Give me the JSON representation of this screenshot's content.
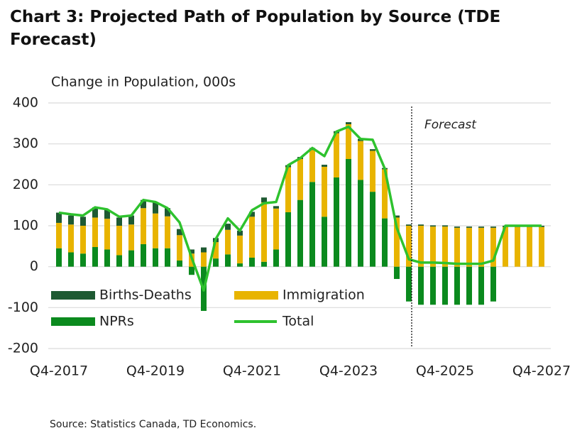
{
  "chart_data": {
    "type": "bar",
    "title": "Chart 3: Projected Path of Population by Source (TDE Forecast)",
    "y_label": "Change in Population, 000s",
    "source": "Source: Statistics Canada, TD Economics.",
    "annotation": "Forecast",
    "categories": [
      "Q4-2017",
      null,
      null,
      null,
      null,
      null,
      null,
      null,
      "Q4-2019",
      null,
      null,
      null,
      null,
      null,
      null,
      null,
      "Q4-2021",
      null,
      null,
      null,
      null,
      null,
      null,
      null,
      "Q4-2023",
      null,
      null,
      null,
      null,
      null,
      null,
      null,
      "Q4-2025",
      null,
      null,
      null,
      null,
      null,
      null,
      null,
      "Q4-2027"
    ],
    "series": [
      {
        "name": "NPRs",
        "color": "#0b8a1e",
        "values": [
          45,
          35,
          32,
          48,
          42,
          28,
          40,
          55,
          45,
          45,
          15,
          -20,
          -108,
          20,
          30,
          8,
          22,
          12,
          42,
          133,
          163,
          207,
          122,
          218,
          263,
          212,
          183,
          118,
          -30,
          -85,
          -93,
          -93,
          -93,
          -93,
          -93,
          -93,
          -85,
          0,
          0,
          0,
          0
        ]
      },
      {
        "name": "Immigration",
        "color": "#e8b400",
        "values": [
          62,
          68,
          68,
          72,
          75,
          72,
          63,
          88,
          85,
          78,
          62,
          32,
          35,
          40,
          60,
          68,
          100,
          145,
          100,
          110,
          100,
          78,
          122,
          108,
          85,
          95,
          100,
          120,
          120,
          100,
          100,
          98,
          98,
          95,
          95,
          95,
          95,
          97,
          97,
          97,
          97
        ]
      },
      {
        "name": "Births-Deaths",
        "color": "#1e5a32",
        "values": [
          25,
          22,
          22,
          25,
          22,
          20,
          22,
          20,
          28,
          20,
          15,
          10,
          12,
          10,
          15,
          12,
          12,
          12,
          6,
          5,
          5,
          5,
          5,
          5,
          5,
          5,
          4,
          3,
          5,
          3,
          3,
          3,
          3,
          3,
          3,
          3,
          3,
          3,
          3,
          3,
          3
        ]
      },
      {
        "name": "Total",
        "type": "line",
        "color": "#2ec22e",
        "values": [
          132,
          128,
          125,
          145,
          140,
          122,
          125,
          163,
          158,
          143,
          108,
          22,
          -58,
          68,
          118,
          88,
          138,
          155,
          158,
          248,
          265,
          290,
          270,
          330,
          342,
          312,
          310,
          240,
          95,
          18,
          10,
          10,
          9,
          7,
          7,
          7,
          15,
          100,
          100,
          100,
          100
        ]
      }
    ],
    "ylim": [
      -200,
      400
    ],
    "yticks": [
      -200,
      -100,
      0,
      100,
      200,
      300,
      400
    ],
    "grid": true
  }
}
